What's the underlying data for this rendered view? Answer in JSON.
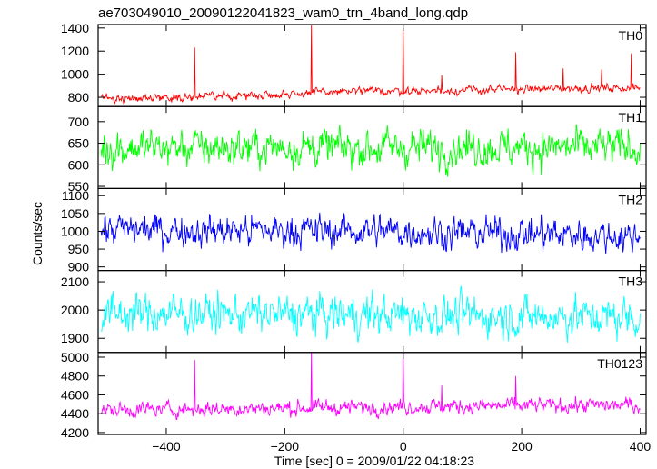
{
  "chart_data": {
    "type": "line",
    "title": "ae703049010_20090122041823_wam0_trn_4band_long.qdp",
    "xlabel": "Time [sec] 0 = 2009/01/22 04:18:23",
    "ylabel": "Counts/sec",
    "xlim": [
      -515,
      410
    ],
    "x_ticks": [
      -400,
      -200,
      0,
      200,
      400
    ],
    "x_tick_labels": [
      "−400",
      "−200",
      "0",
      "200",
      "400"
    ],
    "x_range_data": [
      -510,
      400
    ],
    "grid": false,
    "panels": [
      {
        "name": "TH0",
        "color": "#ff0000",
        "ylim": [
          720,
          1430
        ],
        "yticks": [
          800,
          1000,
          1200,
          1400
        ],
        "baseline": [
          [
            -510,
            790
          ],
          [
            -300,
            810
          ],
          [
            -100,
            850
          ],
          [
            100,
            860
          ],
          [
            300,
            880
          ],
          [
            400,
            880
          ]
        ],
        "noise": 24,
        "spikes": [
          [
            -352,
            1230
          ],
          [
            -155,
            1430
          ],
          [
            0,
            1400
          ],
          [
            65,
            990
          ],
          [
            190,
            1190
          ],
          [
            270,
            1050
          ],
          [
            335,
            1040
          ],
          [
            385,
            1180
          ]
        ]
      },
      {
        "name": "TH1",
        "color": "#00ff00",
        "ylim": [
          545,
          735
        ],
        "yticks": [
          550,
          600,
          650,
          700
        ],
        "baseline": [
          [
            -510,
            640
          ],
          [
            400,
            640
          ]
        ],
        "noise": 30,
        "spikes": []
      },
      {
        "name": "TH2",
        "color": "#0000ff",
        "ylim": [
          890,
          1120
        ],
        "yticks": [
          900,
          950,
          1000,
          1050,
          1100
        ],
        "baseline": [
          [
            -510,
            1005
          ],
          [
            0,
            1000
          ],
          [
            400,
            985
          ]
        ],
        "noise": 32,
        "spikes": []
      },
      {
        "name": "TH3",
        "color": "#00ffff",
        "ylim": [
          1850,
          2140
        ],
        "yticks": [
          1900,
          2000,
          2100
        ],
        "baseline": [
          [
            -510,
            1990
          ],
          [
            400,
            1975
          ]
        ],
        "noise": 48,
        "spikes": []
      },
      {
        "name": "TH0123",
        "color": "#ff00ff",
        "ylim": [
          4180,
          5050
        ],
        "yticks": [
          4200,
          4400,
          4600,
          4800,
          5000
        ],
        "baseline": [
          [
            -510,
            4440
          ],
          [
            -200,
            4460
          ],
          [
            100,
            4480
          ],
          [
            400,
            4490
          ]
        ],
        "noise": 55,
        "spikes": [
          [
            -352,
            4970
          ],
          [
            -155,
            5050
          ],
          [
            0,
            5050
          ],
          [
            65,
            4700
          ],
          [
            190,
            4800
          ]
        ]
      }
    ]
  }
}
